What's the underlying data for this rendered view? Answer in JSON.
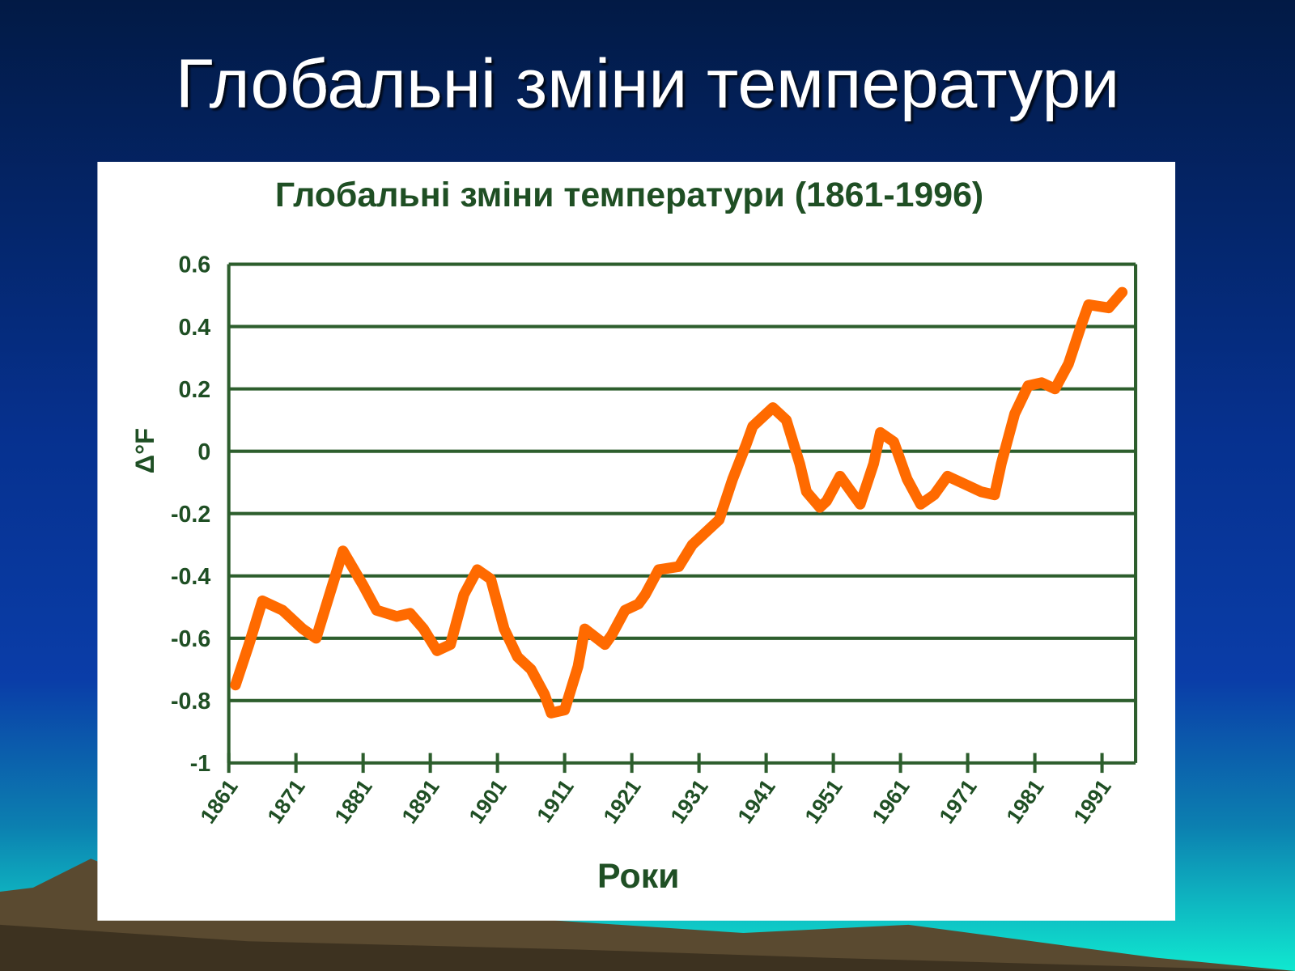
{
  "slide_title": "Глобальні зміни температури",
  "chart_data": {
    "type": "line",
    "title": "Глобальні зміни температури (1861-1996)",
    "y_label": "Δ°F",
    "x_label": "Роки",
    "color": "#ff6a00",
    "grid": true,
    "x": [
      1862,
      1864,
      1866,
      1869,
      1872,
      1874,
      1876,
      1878,
      1881,
      1883,
      1886,
      1888,
      1890,
      1892,
      1894,
      1896,
      1898,
      1900,
      1902,
      1904,
      1906,
      1908,
      1909,
      1911,
      1913,
      1914,
      1917,
      1918,
      1920,
      1922,
      1923,
      1925,
      1928,
      1930,
      1932,
      1934,
      1936,
      1938,
      1939,
      1942,
      1944,
      1946,
      1947,
      1949,
      1950,
      1952,
      1954,
      1955,
      1957,
      1958,
      1960,
      1962,
      1964,
      1966,
      1968,
      1971,
      1973,
      1975,
      1976,
      1978,
      1980,
      1982,
      1984,
      1986,
      1988,
      1989,
      1992,
      1994
    ],
    "values": [
      -0.75,
      -0.62,
      -0.48,
      -0.51,
      -0.57,
      -0.6,
      -0.46,
      -0.32,
      -0.43,
      -0.51,
      -0.53,
      -0.52,
      -0.57,
      -0.64,
      -0.62,
      -0.46,
      -0.38,
      -0.41,
      -0.57,
      -0.66,
      -0.7,
      -0.78,
      -0.84,
      -0.83,
      -0.69,
      -0.57,
      -0.62,
      -0.59,
      -0.51,
      -0.49,
      -0.46,
      -0.38,
      -0.37,
      -0.3,
      -0.26,
      -0.22,
      -0.09,
      0.02,
      0.08,
      0.14,
      0.1,
      -0.04,
      -0.13,
      -0.18,
      -0.16,
      -0.08,
      -0.14,
      -0.17,
      -0.04,
      0.06,
      0.03,
      -0.09,
      -0.17,
      -0.14,
      -0.08,
      -0.11,
      -0.13,
      -0.14,
      -0.04,
      0.12,
      0.21,
      0.22,
      0.2,
      0.28,
      0.41,
      0.47,
      0.46,
      0.51
    ],
    "xlim": [
      1861,
      1996
    ],
    "xticks": [
      1861,
      1871,
      1881,
      1891,
      1901,
      1911,
      1921,
      1931,
      1941,
      1951,
      1961,
      1971,
      1981,
      1991
    ],
    "ylim": [
      -1,
      0.6
    ],
    "yticks": [
      0.6,
      0.4,
      0.2,
      0,
      -0.2,
      -0.4,
      -0.6,
      -0.8,
      -1
    ]
  }
}
